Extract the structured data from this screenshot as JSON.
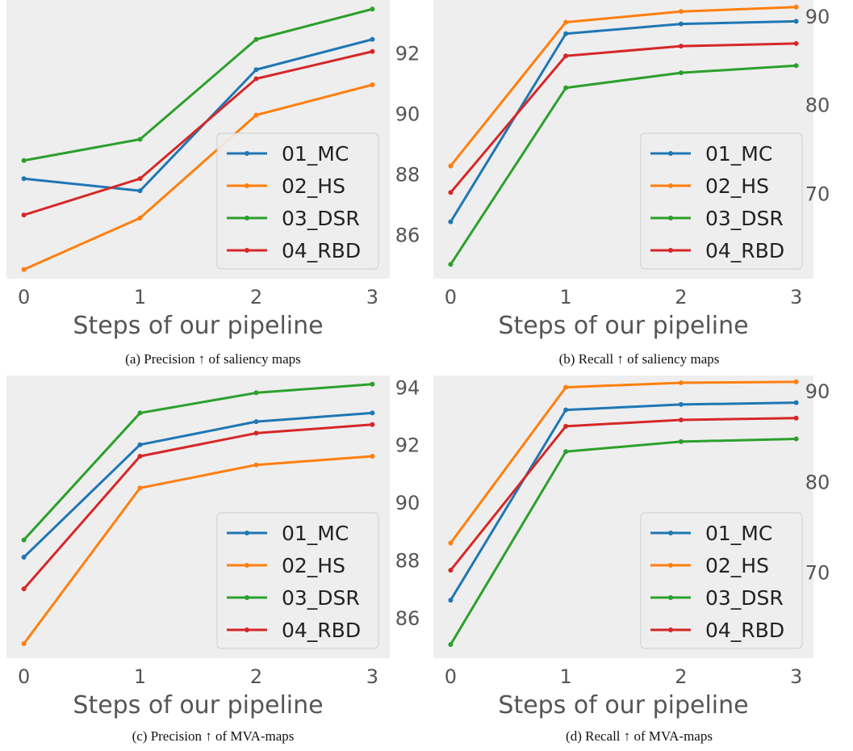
{
  "chart_data": [
    {
      "type": "line",
      "caption": "(a) Precision ↑ of saliency maps",
      "xlabel": "Steps of our pipeline",
      "x": [
        0,
        1,
        2,
        3
      ],
      "xticks": [
        "0",
        "1",
        "2",
        "3"
      ],
      "ylim": [
        84.55,
        93.75
      ],
      "yticks": [
        86,
        88,
        90,
        92
      ],
      "series": [
        {
          "name": "01_MC",
          "values": [
            87.85,
            87.45,
            91.45,
            92.45
          ]
        },
        {
          "name": "02_HS",
          "values": [
            84.85,
            86.55,
            89.95,
            90.95
          ]
        },
        {
          "name": "03_DSR",
          "values": [
            88.45,
            89.15,
            92.45,
            93.45
          ]
        },
        {
          "name": "04_RBD",
          "values": [
            86.65,
            87.85,
            91.15,
            92.05
          ]
        }
      ],
      "legend": "lower-right",
      "grid": false
    },
    {
      "type": "line",
      "caption": "(b) Recall ↑ of saliency maps",
      "xlabel": "Steps of our pipeline",
      "x": [
        0,
        1,
        2,
        3
      ],
      "xticks": [
        "0",
        "1",
        "2",
        "3"
      ],
      "ylim": [
        60.4,
        91.8
      ],
      "yticks": [
        70,
        80,
        90
      ],
      "series": [
        {
          "name": "01_MC",
          "values": [
            66.8,
            88.0,
            89.1,
            89.4
          ]
        },
        {
          "name": "02_HS",
          "values": [
            73.1,
            89.3,
            90.5,
            91.0
          ]
        },
        {
          "name": "03_DSR",
          "values": [
            62.0,
            81.9,
            83.6,
            84.4
          ]
        },
        {
          "name": "04_RBD",
          "values": [
            70.1,
            85.5,
            86.6,
            86.9
          ]
        }
      ],
      "legend": "lower-right",
      "grid": false
    },
    {
      "type": "line",
      "caption": "(c) Precision ↑ of MVA-maps",
      "xlabel": "Steps of our pipeline",
      "x": [
        0,
        1,
        2,
        3
      ],
      "xticks": [
        "0",
        "1",
        "2",
        "3"
      ],
      "ylim": [
        84.6,
        94.4
      ],
      "yticks": [
        86,
        88,
        90,
        92,
        94
      ],
      "series": [
        {
          "name": "01_MC",
          "values": [
            88.1,
            92.0,
            92.8,
            93.1
          ]
        },
        {
          "name": "02_HS",
          "values": [
            85.1,
            90.5,
            91.3,
            91.6
          ]
        },
        {
          "name": "03_DSR",
          "values": [
            88.7,
            93.1,
            93.8,
            94.1
          ]
        },
        {
          "name": "04_RBD",
          "values": [
            87.0,
            91.6,
            92.4,
            92.7
          ]
        }
      ],
      "legend": "lower-right",
      "grid": false
    },
    {
      "type": "line",
      "caption": "(d) Recall ↑ of MVA-maps",
      "xlabel": "Steps of our pipeline",
      "x": [
        0,
        1,
        2,
        3
      ],
      "xticks": [
        "0",
        "1",
        "2",
        "3"
      ],
      "ylim": [
        60.5,
        91.7
      ],
      "yticks": [
        70,
        80,
        90
      ],
      "series": [
        {
          "name": "01_MC",
          "values": [
            66.9,
            87.9,
            88.5,
            88.7
          ]
        },
        {
          "name": "02_HS",
          "values": [
            73.2,
            90.4,
            90.9,
            91.0
          ]
        },
        {
          "name": "03_DSR",
          "values": [
            62.0,
            83.3,
            84.4,
            84.7
          ]
        },
        {
          "name": "04_RBD",
          "values": [
            70.2,
            86.1,
            86.8,
            87.0
          ]
        }
      ],
      "legend": "lower-right",
      "grid": false
    }
  ],
  "colors": {
    "01_MC": "#1f77b4",
    "02_HS": "#ff7f0e",
    "03_DSR": "#2ca02c",
    "04_RBD": "#d62728",
    "plot_bg": "#eeeeee",
    "tick_text": "#555555"
  }
}
